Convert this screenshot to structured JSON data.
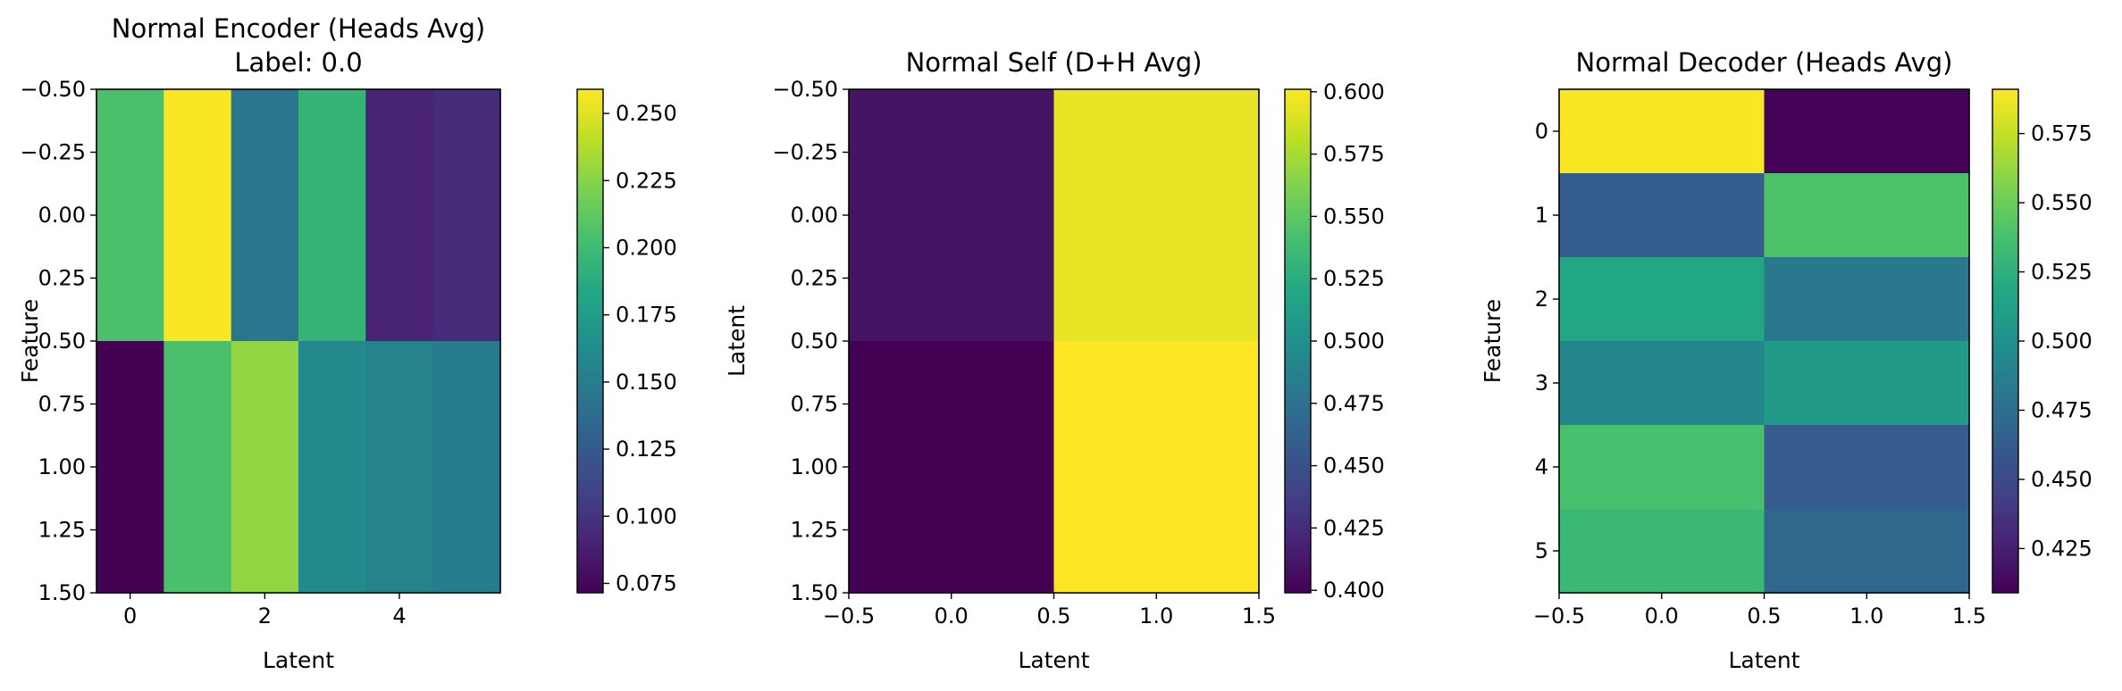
{
  "chart_data": [
    {
      "type": "heatmap",
      "title": "Normal Encoder (Heads Avg)",
      "subtitle": "Label: 0.0",
      "xlabel": "Latent",
      "ylabel": "Feature",
      "x_extent": [
        -0.5,
        5.5
      ],
      "y_extent": [
        -0.5,
        1.5
      ],
      "y_inverted": true,
      "xticks": [
        0,
        2,
        4
      ],
      "xtick_labels": [
        "0",
        "2",
        "4"
      ],
      "yticks": [
        -0.5,
        -0.25,
        0.0,
        0.25,
        0.5,
        0.75,
        1.0,
        1.25,
        1.5
      ],
      "ytick_labels": [
        "−0.50",
        "−0.25",
        "0.00",
        "0.25",
        "0.50",
        "0.75",
        "1.00",
        "1.25",
        "1.50"
      ],
      "matrix": [
        [
          0.205,
          0.258,
          0.145,
          0.195,
          0.09,
          0.095
        ],
        [
          0.072,
          0.205,
          0.228,
          0.16,
          0.155,
          0.15
        ]
      ],
      "colorbar": {
        "vmin": 0.0715,
        "vmax": 0.259,
        "ticks": [
          0.075,
          0.1,
          0.125,
          0.15,
          0.175,
          0.2,
          0.225,
          0.25
        ],
        "tick_labels": [
          "0.075",
          "0.100",
          "0.125",
          "0.150",
          "0.175",
          "0.200",
          "0.225",
          "0.250"
        ]
      },
      "colormap": "viridis"
    },
    {
      "type": "heatmap",
      "title": "Normal Self (D+H Avg)",
      "xlabel": "Latent",
      "ylabel": "Latent",
      "x_extent": [
        -0.5,
        1.5
      ],
      "y_extent": [
        -0.5,
        1.5
      ],
      "y_inverted": true,
      "xticks": [
        -0.5,
        0.0,
        0.5,
        1.0,
        1.5
      ],
      "xtick_labels": [
        "−0.5",
        "0.0",
        "0.5",
        "1.0",
        "1.5"
      ],
      "yticks": [
        -0.5,
        -0.25,
        0.0,
        0.25,
        0.5,
        0.75,
        1.0,
        1.25,
        1.5
      ],
      "ytick_labels": [
        "−0.50",
        "−0.25",
        "0.00",
        "0.25",
        "0.50",
        "0.75",
        "1.00",
        "1.25",
        "1.50"
      ],
      "matrix": [
        [
          0.41,
          0.594
        ],
        [
          0.399,
          0.601
        ]
      ],
      "colorbar": {
        "vmin": 0.399,
        "vmax": 0.601,
        "ticks": [
          0.4,
          0.425,
          0.45,
          0.475,
          0.5,
          0.525,
          0.55,
          0.575,
          0.6
        ],
        "tick_labels": [
          "0.400",
          "0.425",
          "0.450",
          "0.475",
          "0.500",
          "0.525",
          "0.550",
          "0.575",
          "0.600"
        ]
      },
      "colormap": "viridis"
    },
    {
      "type": "heatmap",
      "title": "Normal Decoder (Heads Avg)",
      "xlabel": "Latent",
      "ylabel": "Feature",
      "x_extent": [
        -0.5,
        1.5
      ],
      "y_extent": [
        -0.5,
        5.5
      ],
      "y_inverted": true,
      "xticks": [
        -0.5,
        0.0,
        0.5,
        1.0,
        1.5
      ],
      "xtick_labels": [
        "−0.5",
        "0.0",
        "0.5",
        "1.0",
        "1.5"
      ],
      "yticks": [
        0,
        1,
        2,
        3,
        4,
        5
      ],
      "ytick_labels": [
        "0",
        "1",
        "2",
        "3",
        "4",
        "5"
      ],
      "matrix": [
        [
          0.59,
          0.41
        ],
        [
          0.463,
          0.54
        ],
        [
          0.518,
          0.482
        ],
        [
          0.492,
          0.508
        ],
        [
          0.538,
          0.462
        ],
        [
          0.532,
          0.47
        ]
      ],
      "colorbar": {
        "vmin": 0.409,
        "vmax": 0.591,
        "ticks": [
          0.425,
          0.45,
          0.475,
          0.5,
          0.525,
          0.55,
          0.575
        ],
        "tick_labels": [
          "0.425",
          "0.450",
          "0.475",
          "0.500",
          "0.525",
          "0.550",
          "0.575"
        ]
      },
      "colormap": "viridis"
    }
  ]
}
